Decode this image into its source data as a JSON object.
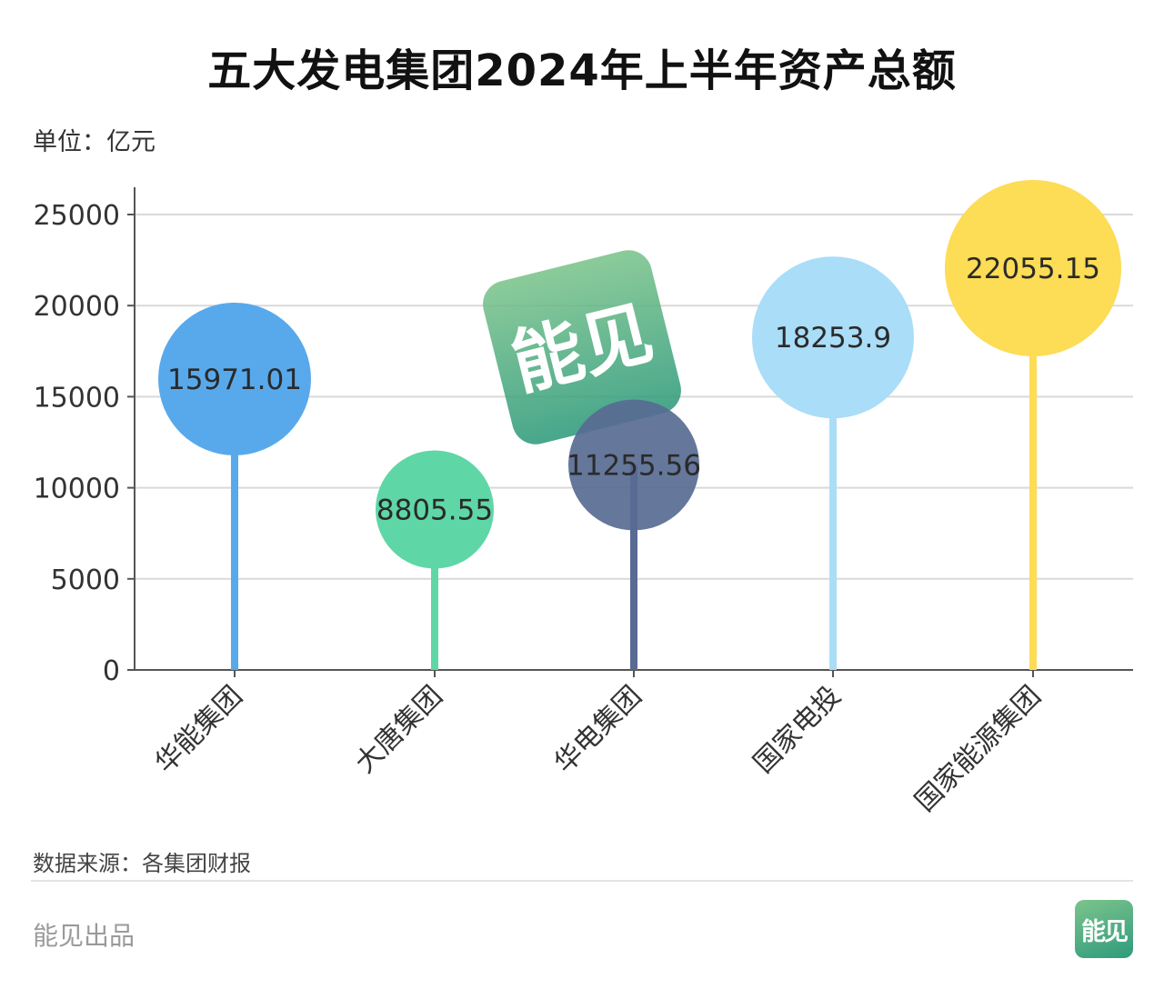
{
  "title": "五大发电集团2024年上半年资产总额",
  "unit_label": "单位：亿元",
  "source_label": "数据来源：各集团财报",
  "producer_label": "能见出品",
  "logo_text": "能见",
  "watermark_text": "能见",
  "colors": {
    "axis": "#555555",
    "grid": "#d9d9d9",
    "text": "#333333",
    "logo_green_light": "#7cc48c",
    "logo_green_dark": "#2f9b7c"
  },
  "chart_data": {
    "type": "lollipop",
    "title": "五大发电集团2024年上半年资产总额",
    "ylabel": "单位：亿元",
    "ylim": [
      0,
      25000
    ],
    "yticks": [
      0,
      5000,
      10000,
      15000,
      20000,
      25000
    ],
    "grid": true,
    "categories": [
      "华能集团",
      "大唐集团",
      "华电集团",
      "国家电投",
      "国家能源集团"
    ],
    "values": [
      15971.01,
      8805.55,
      11255.56,
      18253.9,
      22055.15
    ],
    "value_labels": [
      "15971.01",
      "8805.55",
      "11255.56",
      "18253.9",
      "22055.15"
    ],
    "point_colors": [
      "#58a9ec",
      "#5fd6a6",
      "#586b93",
      "#a9ddf8",
      "#fddc56"
    ]
  }
}
